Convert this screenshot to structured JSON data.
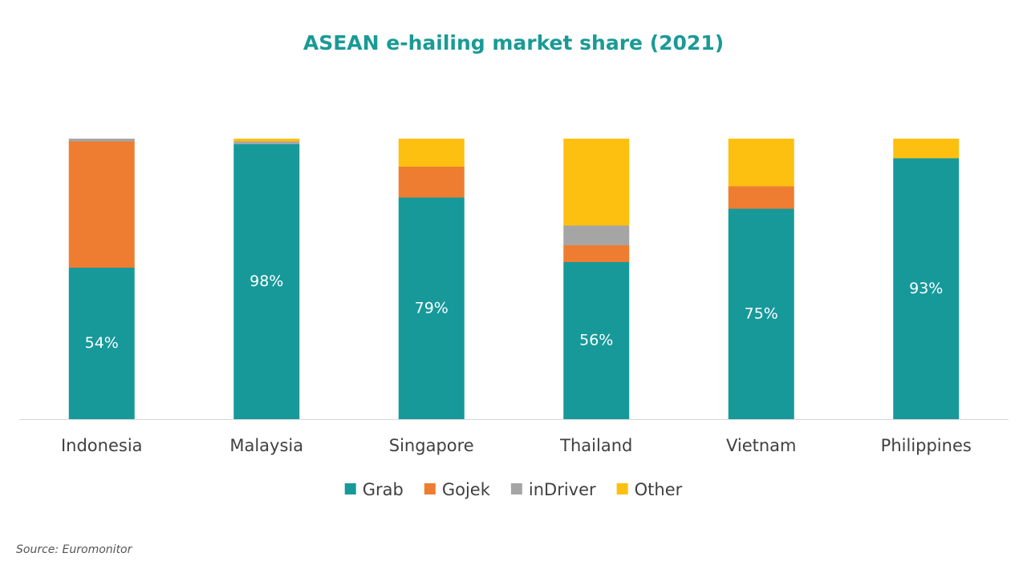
{
  "chart_data": {
    "type": "stacked_bar",
    "title": "ASEAN e-hailing market share (2021)",
    "categories": [
      "Indonesia",
      "Malaysia",
      "Singapore",
      "Thailand",
      "Vietnam",
      "Philippines"
    ],
    "series": [
      {
        "name": "Grab",
        "color": "#17999a",
        "values": [
          54,
          98,
          79,
          56,
          75,
          93
        ],
        "value_labels": [
          "54%",
          "98%",
          "79%",
          "56%",
          "75%",
          "93%"
        ]
      },
      {
        "name": "Gojek",
        "color": "#ee7d31",
        "values": [
          45,
          0,
          11,
          6,
          8,
          0
        ]
      },
      {
        "name": "inDriver",
        "color": "#a5a5a5",
        "values": [
          1,
          1,
          0,
          7,
          0,
          0
        ]
      },
      {
        "name": "Other",
        "color": "#fdc010",
        "values": [
          0,
          1,
          10,
          31,
          17,
          7
        ]
      }
    ],
    "ylim": [
      0,
      100
    ],
    "legend": "bottom",
    "source": "Source: Euromonitor"
  }
}
